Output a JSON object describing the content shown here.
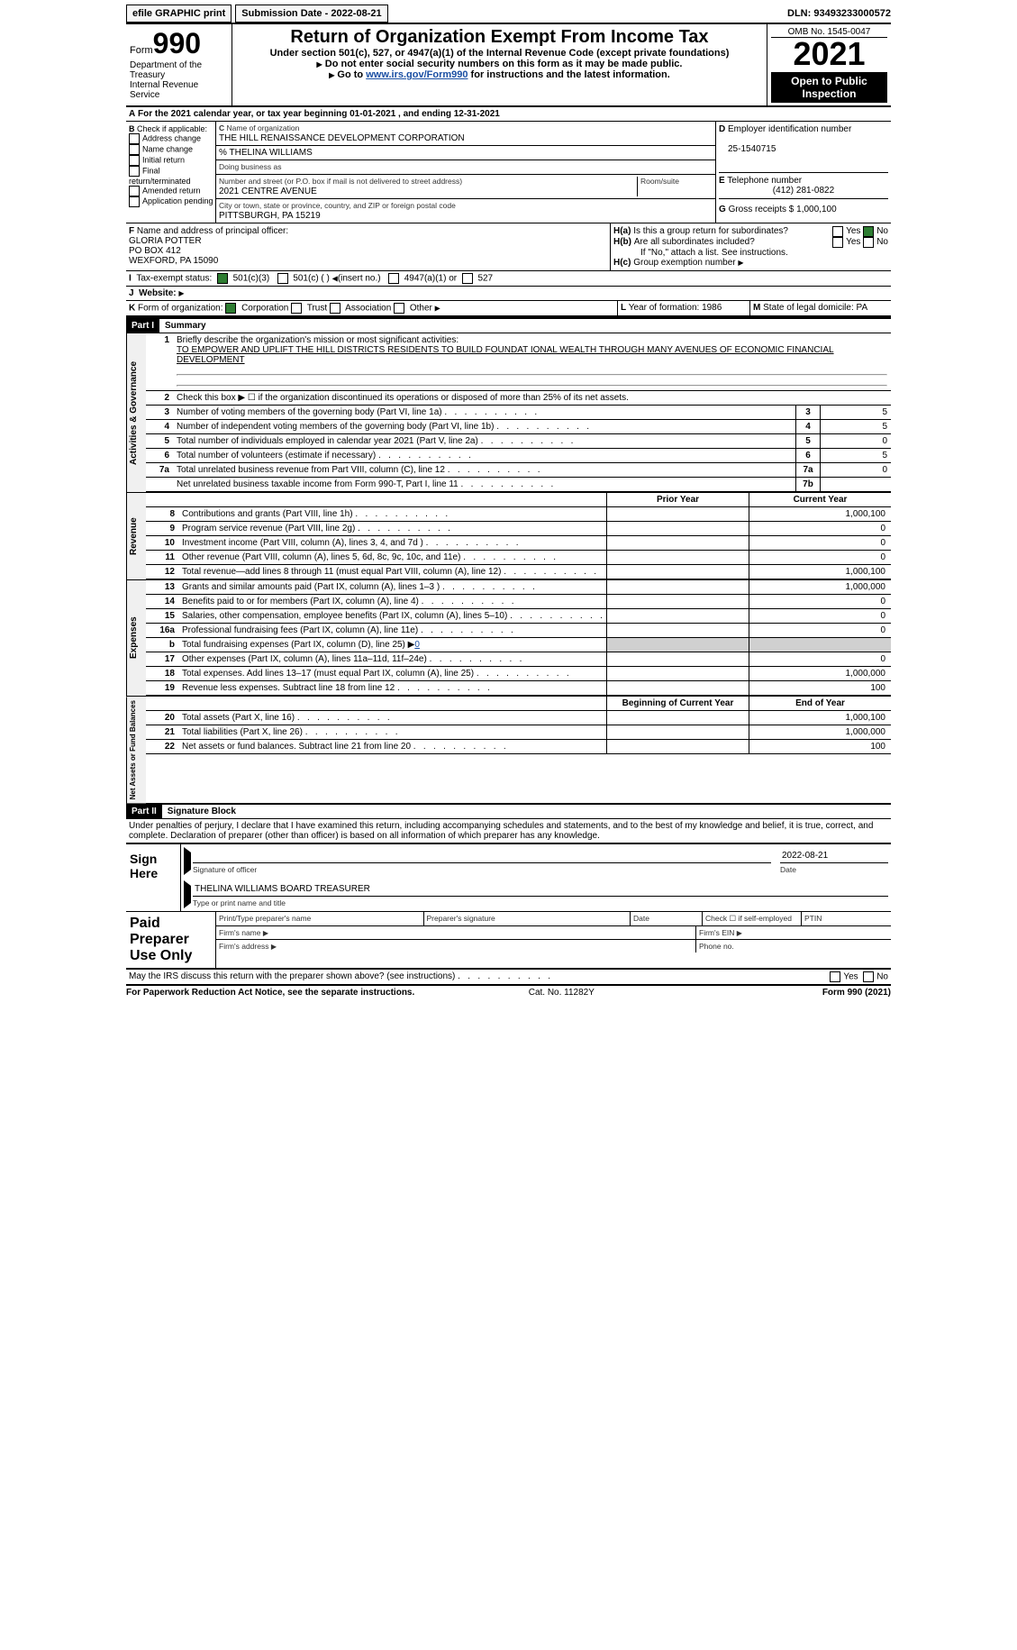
{
  "topbar": {
    "efile": "efile GRAPHIC print",
    "subdate_lbl": "Submission Date - ",
    "subdate": "2022-08-21",
    "dln_lbl": "DLN: ",
    "dln": "93493233000572"
  },
  "hdr": {
    "formword": "Form",
    "formno": "990",
    "dept": "Department of the Treasury",
    "irs": "Internal Revenue Service",
    "title": "Return of Organization Exempt From Income Tax",
    "sub": "Under section 501(c), 527, or 4947(a)(1) of the Internal Revenue Code (except private foundations)",
    "note1": "Do not enter social security numbers on this form as it may be made public.",
    "note2_pre": "Go to ",
    "note2_link": "www.irs.gov/Form990",
    "note2_post": " for instructions and the latest information.",
    "omb_lbl": "OMB No. ",
    "omb": "1545-0047",
    "year": "2021",
    "pub": "Open to Public Inspection"
  },
  "A": {
    "line": "For the 2021 calendar year, or tax year beginning ",
    "d1": "01-01-2021",
    "mid": " , and ending ",
    "d2": "12-31-2021"
  },
  "B": {
    "lbl": "Check if applicable:",
    "items": [
      "Address change",
      "Name change",
      "Initial return",
      "Final return/terminated",
      "Amended return",
      "Application pending"
    ]
  },
  "C": {
    "name_lbl": "Name of organization",
    "name": "THE HILL RENAISSANCE DEVELOPMENT CORPORATION",
    "care": "% THELINA WILLIAMS",
    "dba_lbl": "Doing business as",
    "addr_lbl": "Number and street (or P.O. box if mail is not delivered to street address)",
    "room_lbl": "Room/suite",
    "addr": "2021 CENTRE AVENUE",
    "city_lbl": "City or town, state or province, country, and ZIP or foreign postal code",
    "city": "PITTSBURGH, PA  15219"
  },
  "D": {
    "lbl": "Employer identification number",
    "val": "25-1540715"
  },
  "E": {
    "lbl": "Telephone number",
    "val": "(412) 281-0822"
  },
  "G": {
    "lbl": "Gross receipts $ ",
    "val": "1,000,100"
  },
  "F": {
    "lbl": "Name and address of principal officer:",
    "name": "GLORIA POTTER",
    "addr": "PO BOX 412",
    "city": "WEXFORD, PA  15090"
  },
  "H": {
    "a_lbl": "Is this a group return for subordinates?",
    "b_lbl": "Are all subordinates included?",
    "yes": "Yes",
    "no": "No",
    "note": "If \"No,\" attach a list. See instructions.",
    "c_lbl": "Group exemption number"
  },
  "I": {
    "lbl": "Tax-exempt status:",
    "c3": "501(c)(3)",
    "c": "501(c) (  ) ",
    "ins": "(insert no.)",
    "a1": "4947(a)(1) or",
    "s527": "527"
  },
  "J": {
    "lbl": "Website:"
  },
  "K": {
    "lbl": "Form of organization:",
    "corp": "Corporation",
    "trust": "Trust",
    "assoc": "Association",
    "other": "Other"
  },
  "L": {
    "lbl": "Year of formation: ",
    "val": "1986"
  },
  "M": {
    "lbl": "State of legal domicile: ",
    "val": "PA"
  },
  "partI": {
    "hdr": "Part I",
    "title": "Summary",
    "side": "Activities & Governance",
    "mission_lbl": "Briefly describe the organization's mission or most significant activities:",
    "mission": "TO EMPOWER AND UPLIFT THE HILL DISTRICTS RESIDENTS TO BUILD FOUNDAT IONAL WEALTH THROUGH MANY AVENUES OF ECONOMIC FINANCIAL DEVELOPMENT",
    "l2": "Check this box ▶ ☐ if the organization discontinued its operations or disposed of more than 25% of its net assets.",
    "l3": "Number of voting members of the governing body (Part VI, line 1a)",
    "l4": "Number of independent voting members of the governing body (Part VI, line 1b)",
    "l5": "Total number of individuals employed in calendar year 2021 (Part V, line 2a)",
    "l6": "Total number of volunteers (estimate if necessary)",
    "l7a": "Total unrelated business revenue from Part VIII, column (C), line 12",
    "l7b": "Net unrelated business taxable income from Form 990-T, Part I, line 11",
    "v3": "5",
    "v4": "5",
    "v5": "0",
    "v6": "5",
    "v7a": "0",
    "v7b": ""
  },
  "rev": {
    "side": "Revenue",
    "py": "Prior Year",
    "cy": "Current Year",
    "rows": [
      {
        "n": "8",
        "d": "Contributions and grants (Part VIII, line 1h)",
        "cy": "1,000,100"
      },
      {
        "n": "9",
        "d": "Program service revenue (Part VIII, line 2g)",
        "cy": "0"
      },
      {
        "n": "10",
        "d": "Investment income (Part VIII, column (A), lines 3, 4, and 7d )",
        "cy": "0"
      },
      {
        "n": "11",
        "d": "Other revenue (Part VIII, column (A), lines 5, 6d, 8c, 9c, 10c, and 11e)",
        "cy": "0"
      },
      {
        "n": "12",
        "d": "Total revenue—add lines 8 through 11 (must equal Part VIII, column (A), line 12)",
        "cy": "1,000,100"
      }
    ]
  },
  "exp": {
    "side": "Expenses",
    "rows": [
      {
        "n": "13",
        "d": "Grants and similar amounts paid (Part IX, column (A), lines 1–3 )",
        "cy": "1,000,000"
      },
      {
        "n": "14",
        "d": "Benefits paid to or for members (Part IX, column (A), line 4)",
        "cy": "0"
      },
      {
        "n": "15",
        "d": "Salaries, other compensation, employee benefits (Part IX, column (A), lines 5–10)",
        "cy": "0"
      },
      {
        "n": "16a",
        "d": "Professional fundraising fees (Part IX, column (A), line 11e)",
        "cy": "0"
      },
      {
        "n": "b",
        "d": "Total fundraising expenses (Part IX, column (D), line 25) ▶",
        "v": "0",
        "shade": true
      },
      {
        "n": "17",
        "d": "Other expenses (Part IX, column (A), lines 11a–11d, 11f–24e)",
        "cy": "0"
      },
      {
        "n": "18",
        "d": "Total expenses. Add lines 13–17 (must equal Part IX, column (A), line 25)",
        "cy": "1,000,000"
      },
      {
        "n": "19",
        "d": "Revenue less expenses. Subtract line 18 from line 12",
        "cy": "100"
      }
    ]
  },
  "na": {
    "side": "Net Assets or Fund Balances",
    "h1": "Beginning of Current Year",
    "h2": "End of Year",
    "rows": [
      {
        "n": "20",
        "d": "Total assets (Part X, line 16)",
        "cy": "1,000,100"
      },
      {
        "n": "21",
        "d": "Total liabilities (Part X, line 26)",
        "cy": "1,000,000"
      },
      {
        "n": "22",
        "d": "Net assets or fund balances. Subtract line 21 from line 20",
        "cy": "100"
      }
    ]
  },
  "partII": {
    "hdr": "Part II",
    "title": "Signature Block",
    "decl": "Under penalties of perjury, I declare that I have examined this return, including accompanying schedules and statements, and to the best of my knowledge and belief, it is true, correct, and complete. Declaration of preparer (other than officer) is based on all information of which preparer has any knowledge."
  },
  "sign": {
    "lbl": "Sign Here",
    "sig_lbl": "Signature of officer",
    "date": "2022-08-21",
    "name": "THELINA WILLIAMS BOARD TREASURER",
    "type_lbl": "Type or print name and title",
    "date_lbl": "Date"
  },
  "prep": {
    "lbl": "Paid Preparer Use Only",
    "pt": "Print/Type preparer's name",
    "ps": "Preparer's signature",
    "date": "Date",
    "chk": "Check ☐ if self-employed",
    "ptin": "PTIN",
    "fn": "Firm's name",
    "fe": "Firm's EIN",
    "fa": "Firm's address",
    "ph": "Phone no."
  },
  "foot": {
    "q": "May the IRS discuss this return with the preparer shown above? (see instructions)",
    "yes": "Yes",
    "no": "No",
    "pra": "For Paperwork Reduction Act Notice, see the separate instructions.",
    "cat": "Cat. No. 11282Y",
    "form": "Form 990 (2021)"
  }
}
